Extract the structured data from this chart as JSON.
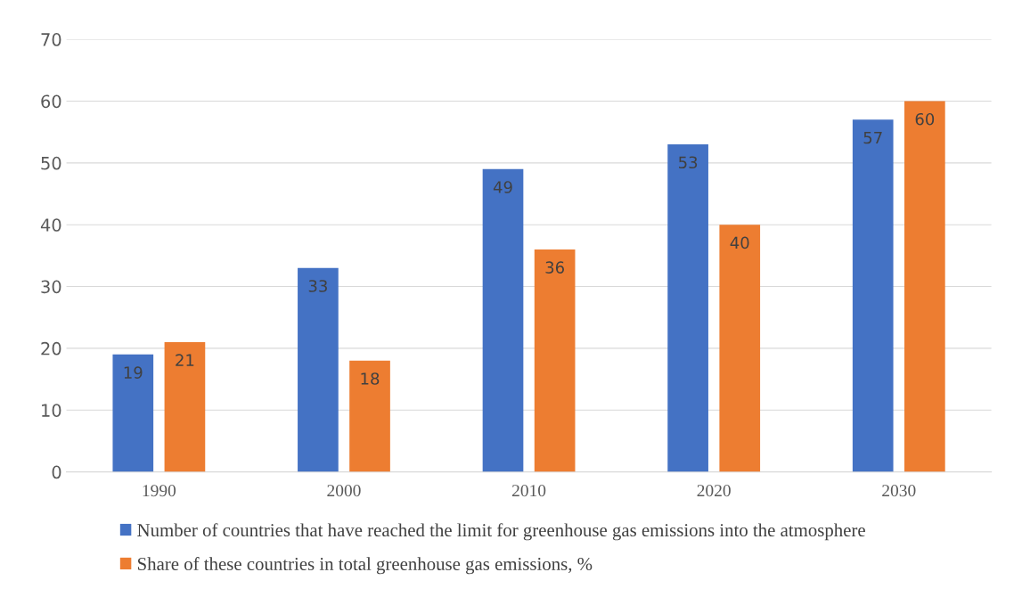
{
  "chart_data": {
    "type": "bar",
    "categories": [
      "1990",
      "2000",
      "2010",
      "2020",
      "2030"
    ],
    "series": [
      {
        "name": "Number of countries that have reached the limit for greenhouse gas emissions into the atmosphere",
        "color": "#4472c4",
        "values": [
          19,
          33,
          49,
          53,
          57
        ]
      },
      {
        "name": "Share of these countries in total greenhouse gas emissions, %",
        "color": "#ed7d31",
        "values": [
          21,
          18,
          36,
          40,
          60
        ]
      }
    ],
    "ylim": [
      0,
      70
    ],
    "yticks": [
      0,
      10,
      20,
      30,
      40,
      50,
      60,
      70
    ],
    "grid": "y",
    "legend": "bottom",
    "data_labels": true
  }
}
